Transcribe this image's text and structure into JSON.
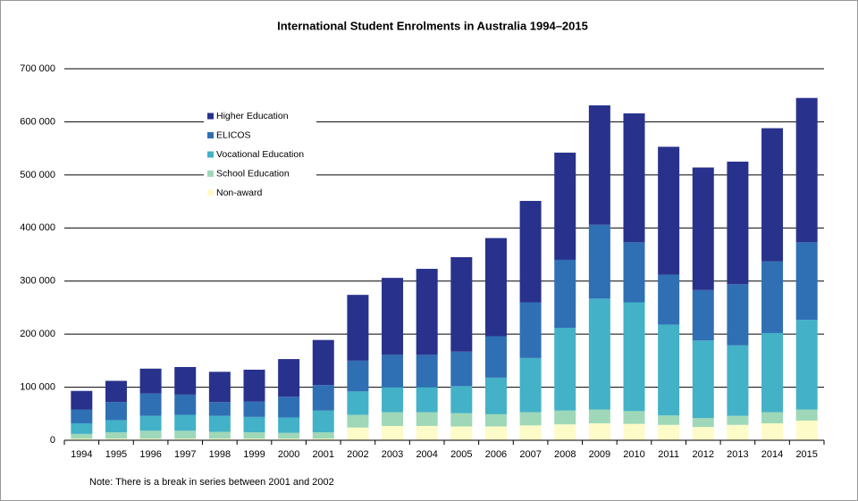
{
  "chart_data": {
    "type": "stacked-bar",
    "title": "International Student Enrolments  in Australia 1994–2015",
    "note": "Note: There is a break in series between 2001 and 2002",
    "categories": [
      "1994",
      "1995",
      "1996",
      "1997",
      "1998",
      "1999",
      "2000",
      "2001",
      "2002",
      "2003",
      "2004",
      "2005",
      "2006",
      "2007",
      "2008",
      "2009",
      "2010",
      "2011",
      "2012",
      "2013",
      "2014",
      "2015"
    ],
    "series": [
      {
        "name": "Non-award",
        "color": "#fdfbc8",
        "values": [
          3000,
          3000,
          3000,
          3000,
          3000,
          3000,
          3000,
          3000,
          24000,
          27000,
          27000,
          26000,
          26000,
          28000,
          30000,
          32000,
          31000,
          29000,
          25000,
          29000,
          32000,
          37000
        ]
      },
      {
        "name": "School Education",
        "color": "#9ed8b8",
        "values": [
          9000,
          12000,
          15000,
          15000,
          13000,
          12000,
          11000,
          12000,
          24000,
          26000,
          26000,
          25000,
          23000,
          25000,
          26000,
          26000,
          24000,
          18000,
          17000,
          17000,
          21000,
          21000
        ]
      },
      {
        "name": "Vocational Education",
        "color": "#43b1c8",
        "values": [
          20000,
          23000,
          28000,
          30000,
          30000,
          29000,
          29000,
          41000,
          44000,
          47000,
          47000,
          51000,
          69000,
          102000,
          156000,
          209000,
          205000,
          171000,
          146000,
          133000,
          149000,
          169000
        ]
      },
      {
        "name": "ELICOS",
        "color": "#2f6fb4",
        "values": [
          26000,
          34000,
          42000,
          38000,
          26000,
          29000,
          39000,
          48000,
          58000,
          61000,
          61000,
          65000,
          78000,
          105000,
          128000,
          139000,
          113000,
          94000,
          95000,
          115000,
          135000,
          146000
        ]
      },
      {
        "name": "Higher Education",
        "color": "#28328c",
        "values": [
          35000,
          40000,
          47000,
          52000,
          57000,
          60000,
          71000,
          85000,
          124000,
          145000,
          162000,
          178000,
          185000,
          191000,
          202000,
          225000,
          243000,
          241000,
          231000,
          231000,
          251000,
          272000
        ]
      }
    ],
    "ylim": [
      0,
      700000
    ],
    "yticks": [
      0,
      {
        "value": 100000,
        "label": "100 000"
      },
      {
        "value": 200000,
        "label": "200 000"
      },
      {
        "value": 300000,
        "label": "300 000"
      },
      {
        "value": 400000,
        "label": "400 000"
      },
      {
        "value": 500000,
        "label": "500 000"
      },
      {
        "value": 600000,
        "label": "600 000"
      },
      {
        "value": 700000,
        "label": "700 000"
      }
    ],
    "grid": true
  }
}
